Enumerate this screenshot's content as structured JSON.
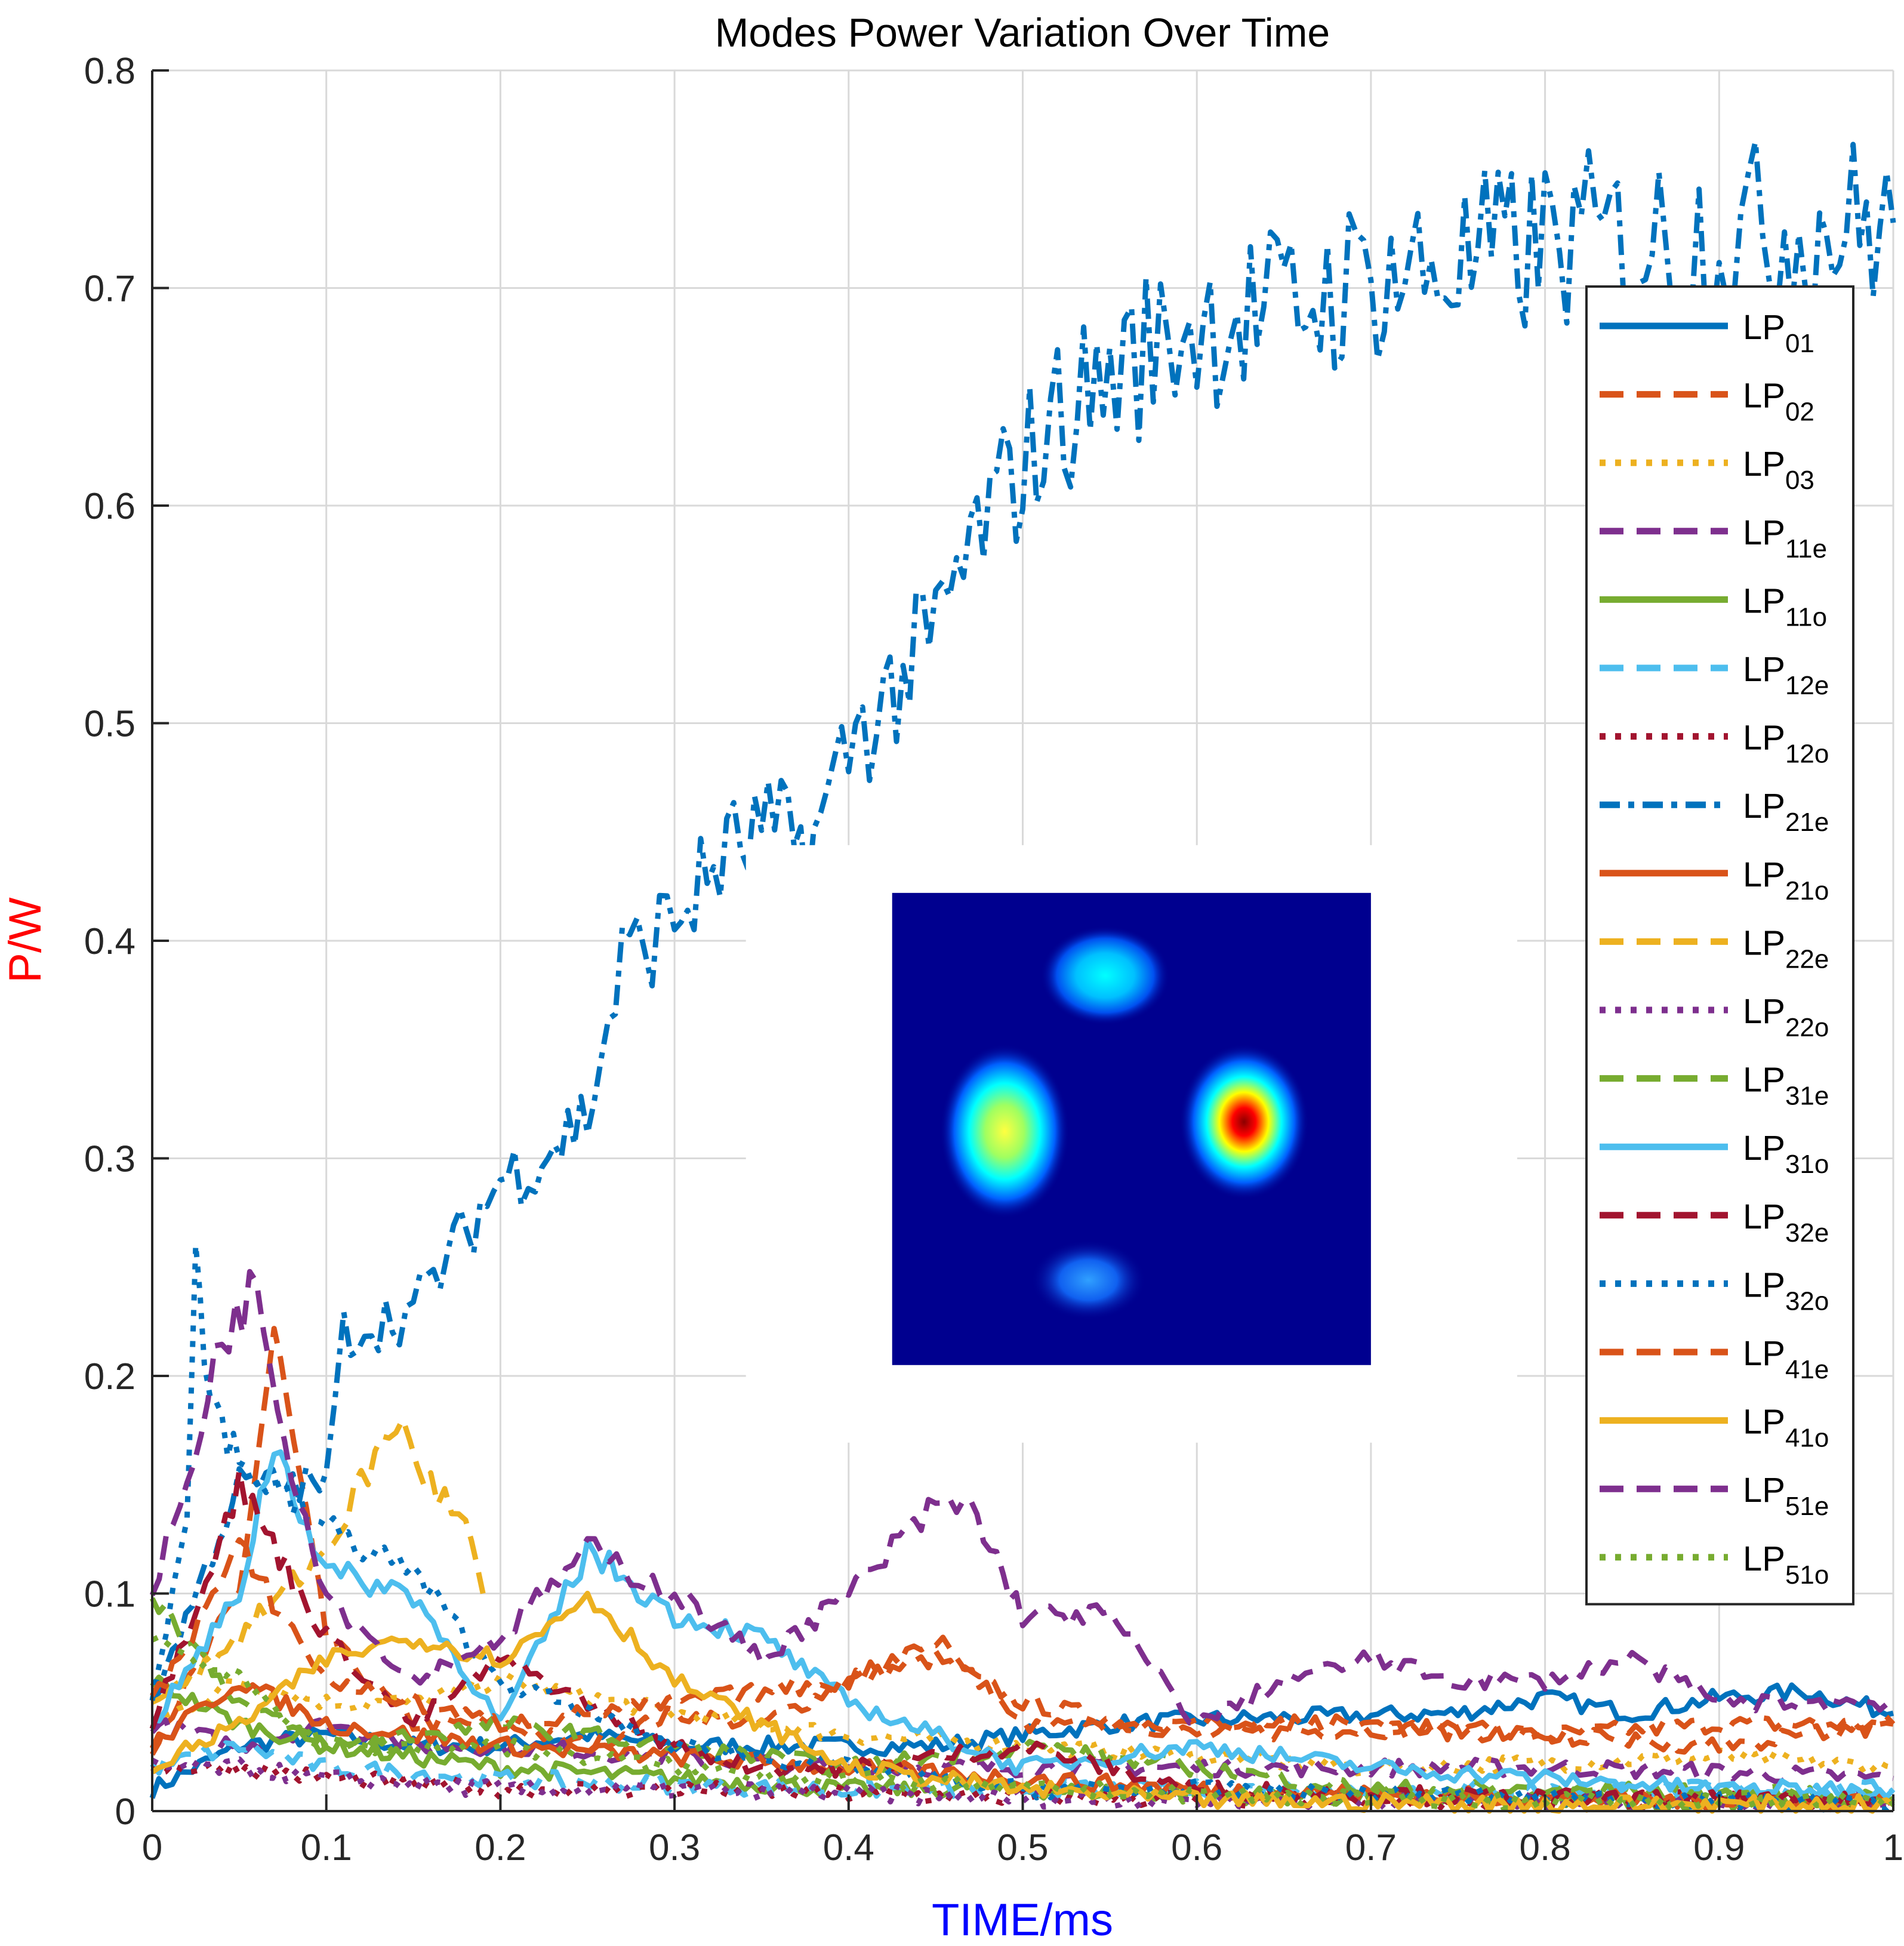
{
  "chart_data": {
    "type": "line",
    "title": "Modes Power Variation Over Time",
    "xlabel": "TIME/ms",
    "ylabel": "P/W",
    "xlabel_color": "#0000ff",
    "ylabel_color": "#ff0000",
    "xlim": [
      0,
      1
    ],
    "ylim": [
      0,
      0.8
    ],
    "xticks": [
      0,
      0.1,
      0.2,
      0.3,
      0.4,
      0.5,
      0.6,
      0.7,
      0.8,
      0.9,
      1
    ],
    "xtick_labels": [
      "0",
      "0.1",
      "0.2",
      "0.3",
      "0.4",
      "0.5",
      "0.6",
      "0.7",
      "0.8",
      "0.9",
      "1"
    ],
    "yticks": [
      0,
      0.1,
      0.2,
      0.3,
      0.4,
      0.5,
      0.6,
      0.7,
      0.8
    ],
    "ytick_labels": [
      "0",
      "0.1",
      "0.2",
      "0.3",
      "0.4",
      "0.5",
      "0.6",
      "0.7",
      "0.8"
    ],
    "grid": true,
    "legend_position": "top-right",
    "inset": {
      "description": "mode field intensity",
      "x_range": [
        0.425,
        0.7
      ],
      "y_range": [
        0.205,
        0.422
      ]
    },
    "series": [
      {
        "name": "LP",
        "sub": "01",
        "color": "#0072bd",
        "style": "solid",
        "x": [
          0,
          0.05,
          0.1,
          0.15,
          0.2,
          0.25,
          0.3,
          0.35,
          0.4,
          0.45,
          0.5,
          0.55,
          0.6,
          0.65,
          0.7,
          0.75,
          0.8,
          0.85,
          0.9,
          0.95,
          1
        ],
        "y": [
          0.01,
          0.03,
          0.035,
          0.03,
          0.03,
          0.035,
          0.03,
          0.03,
          0.03,
          0.03,
          0.035,
          0.04,
          0.042,
          0.043,
          0.044,
          0.045,
          0.052,
          0.045,
          0.052,
          0.055,
          0.045
        ]
      },
      {
        "name": "LP",
        "sub": "02",
        "color": "#d95319",
        "style": "dashed",
        "x": [
          0,
          0.05,
          0.07,
          0.1,
          0.15,
          0.2,
          0.25,
          0.3,
          0.35,
          0.4,
          0.45,
          0.5,
          0.6,
          0.7,
          0.8,
          0.9,
          1
        ],
        "y": [
          0.03,
          0.1,
          0.22,
          0.08,
          0.04,
          0.04,
          0.03,
          0.045,
          0.04,
          0.06,
          0.07,
          0.05,
          0.035,
          0.038,
          0.035,
          0.04,
          0.04
        ]
      },
      {
        "name": "LP",
        "sub": "03",
        "color": "#edb120",
        "style": "dotted",
        "x": [
          0,
          0.05,
          0.1,
          0.15,
          0.2,
          0.3,
          0.4,
          0.5,
          0.6,
          0.7,
          0.8,
          0.9,
          1
        ],
        "y": [
          0.04,
          0.06,
          0.05,
          0.05,
          0.06,
          0.045,
          0.035,
          0.03,
          0.025,
          0.02,
          0.022,
          0.025,
          0.02
        ]
      },
      {
        "name": "LP",
        "sub": "11e",
        "color": "#7e2f8e",
        "style": "dashed",
        "x": [
          0,
          0.05,
          0.1,
          0.15,
          0.2,
          0.3,
          0.4,
          0.5,
          0.6,
          0.7,
          0.8,
          0.9,
          1
        ],
        "y": [
          0.04,
          0.03,
          0.04,
          0.03,
          0.03,
          0.025,
          0.02,
          0.02,
          0.02,
          0.02,
          0.02,
          0.018,
          0.015
        ]
      },
      {
        "name": "LP",
        "sub": "11o",
        "color": "#77ac30",
        "style": "solid",
        "x": [
          0,
          0.05,
          0.1,
          0.2,
          0.3,
          0.4,
          0.5,
          0.6,
          0.7,
          0.8,
          0.9,
          1
        ],
        "y": [
          0.06,
          0.04,
          0.03,
          0.02,
          0.015,
          0.01,
          0.01,
          0.008,
          0.006,
          0.005,
          0.005,
          0.004
        ]
      },
      {
        "name": "LP",
        "sub": "12e",
        "color": "#4dbeee",
        "style": "dashed",
        "x": [
          0,
          0.05,
          0.1,
          0.2,
          0.3,
          0.4,
          0.5,
          0.6,
          0.7,
          0.8,
          0.9,
          1
        ],
        "y": [
          0.02,
          0.03,
          0.02,
          0.015,
          0.012,
          0.01,
          0.01,
          0.01,
          0.01,
          0.01,
          0.01,
          0.01
        ]
      },
      {
        "name": "LP",
        "sub": "12o",
        "color": "#a2142f",
        "style": "dotted",
        "x": [
          0,
          0.05,
          0.1,
          0.2,
          0.3,
          0.4,
          0.5,
          0.6,
          0.7,
          0.8,
          0.9,
          1
        ],
        "y": [
          0.02,
          0.02,
          0.015,
          0.01,
          0.01,
          0.008,
          0.006,
          0.006,
          0.005,
          0.005,
          0.005,
          0.004
        ]
      },
      {
        "name": "LP",
        "sub": "21e",
        "color": "#0072bd",
        "style": "dash-dot",
        "x": [
          0,
          0.05,
          0.1,
          0.11,
          0.15,
          0.2,
          0.22,
          0.25,
          0.27,
          0.3,
          0.33,
          0.35,
          0.38,
          0.4,
          0.42,
          0.45,
          0.47,
          0.5,
          0.52,
          0.55,
          0.6,
          0.65,
          0.7,
          0.75,
          0.8,
          0.85,
          0.9,
          0.95,
          1
        ],
        "y": [
          0.05,
          0.15,
          0.15,
          0.22,
          0.23,
          0.29,
          0.3,
          0.32,
          0.39,
          0.41,
          0.44,
          0.45,
          0.445,
          0.49,
          0.51,
          0.54,
          0.58,
          0.62,
          0.64,
          0.66,
          0.685,
          0.69,
          0.705,
          0.71,
          0.72,
          0.722,
          0.725,
          0.727,
          0.73
        ]
      },
      {
        "name": "LP",
        "sub": "21o",
        "color": "#d95319",
        "style": "solid",
        "x": [
          0,
          0.05,
          0.1,
          0.2,
          0.3,
          0.4,
          0.5,
          0.6,
          0.7,
          0.8,
          0.9,
          1
        ],
        "y": [
          0.03,
          0.06,
          0.04,
          0.03,
          0.025,
          0.02,
          0.015,
          0.01,
          0.008,
          0.006,
          0.005,
          0.004
        ]
      },
      {
        "name": "LP",
        "sub": "22e",
        "color": "#edb120",
        "style": "dashed",
        "x": [
          0,
          0.05,
          0.1,
          0.12,
          0.14,
          0.16,
          0.18,
          0.19
        ],
        "y": [
          0.05,
          0.08,
          0.12,
          0.15,
          0.18,
          0.15,
          0.13,
          0.1
        ]
      },
      {
        "name": "LP",
        "sub": "22o",
        "color": "#7e2f8e",
        "style": "dotted",
        "x": [
          0,
          0.05,
          0.1,
          0.2,
          0.3,
          0.4,
          0.5,
          0.6,
          0.7,
          0.8,
          0.9,
          1
        ],
        "y": [
          0.02,
          0.02,
          0.015,
          0.01,
          0.01,
          0.008,
          0.006,
          0.005,
          0.005,
          0.005,
          0.004,
          0.004
        ]
      },
      {
        "name": "LP",
        "sub": "31e",
        "color": "#77ac30",
        "style": "dashed",
        "x": [
          0,
          0.05,
          0.1,
          0.2,
          0.3,
          0.4,
          0.5,
          0.6,
          0.7,
          0.8,
          0.9,
          1
        ],
        "y": [
          0.1,
          0.05,
          0.03,
          0.04,
          0.03,
          0.02,
          0.03,
          0.02,
          0.01,
          0.01,
          0.008,
          0.006
        ]
      },
      {
        "name": "LP",
        "sub": "31o",
        "color": "#4dbeee",
        "style": "solid",
        "x": [
          0,
          0.05,
          0.07,
          0.1,
          0.15,
          0.2,
          0.25,
          0.3,
          0.35,
          0.4,
          0.5,
          0.6,
          0.7,
          0.8,
          0.9,
          1
        ],
        "y": [
          0.04,
          0.1,
          0.17,
          0.11,
          0.1,
          0.04,
          0.12,
          0.09,
          0.08,
          0.05,
          0.02,
          0.03,
          0.02,
          0.015,
          0.01,
          0.01
        ]
      },
      {
        "name": "LP",
        "sub": "32e",
        "color": "#a2142f",
        "style": "dashed",
        "x": [
          0,
          0.05,
          0.1,
          0.15,
          0.2,
          0.25,
          0.3,
          0.35,
          0.4,
          0.5,
          0.6,
          0.7,
          0.8,
          0.9,
          1
        ],
        "y": [
          0.04,
          0.15,
          0.08,
          0.04,
          0.07,
          0.05,
          0.03,
          0.02,
          0.02,
          0.03,
          0.01,
          0.008,
          0.006,
          0.005,
          0.004
        ]
      },
      {
        "name": "LP",
        "sub": "32o",
        "color": "#0072bd",
        "style": "dotted",
        "x": [
          0,
          0.02,
          0.025,
          0.03,
          0.04,
          0.05,
          0.1,
          0.15,
          0.2,
          0.3,
          0.4,
          0.5,
          0.6,
          0.7,
          0.8,
          0.9,
          1
        ],
        "y": [
          0.05,
          0.14,
          0.27,
          0.2,
          0.18,
          0.16,
          0.13,
          0.11,
          0.06,
          0.03,
          0.02,
          0.01,
          0.01,
          0.008,
          0.006,
          0.005,
          0.004
        ]
      },
      {
        "name": "LP",
        "sub": "41e",
        "color": "#d95319",
        "style": "dashed",
        "x": [
          0,
          0.05,
          0.1,
          0.2,
          0.3,
          0.4,
          0.45,
          0.5,
          0.6,
          0.7,
          0.8,
          0.9,
          1
        ],
        "y": [
          0.05,
          0.12,
          0.06,
          0.04,
          0.05,
          0.06,
          0.08,
          0.04,
          0.04,
          0.04,
          0.035,
          0.03,
          0.04
        ]
      },
      {
        "name": "LP",
        "sub": "41o",
        "color": "#edb120",
        "style": "solid",
        "x": [
          0,
          0.05,
          0.1,
          0.15,
          0.2,
          0.22,
          0.25,
          0.3,
          0.35,
          0.4,
          0.5,
          0.6,
          0.7,
          0.8,
          0.9,
          1
        ],
        "y": [
          0.02,
          0.04,
          0.07,
          0.08,
          0.07,
          0.08,
          0.1,
          0.06,
          0.04,
          0.02,
          0.01,
          0.005,
          0.004,
          0.003,
          0.003,
          0.003
        ]
      },
      {
        "name": "LP",
        "sub": "51e",
        "color": "#7e2f8e",
        "style": "dashed",
        "x": [
          0,
          0.02,
          0.04,
          0.06,
          0.08,
          0.1,
          0.15,
          0.2,
          0.25,
          0.3,
          0.35,
          0.4,
          0.45,
          0.47,
          0.5,
          0.55,
          0.6,
          0.65,
          0.7,
          0.75,
          0.8,
          0.85,
          0.9,
          0.95,
          1
        ],
        "y": [
          0.1,
          0.15,
          0.22,
          0.24,
          0.16,
          0.1,
          0.06,
          0.08,
          0.12,
          0.1,
          0.07,
          0.1,
          0.14,
          0.14,
          0.09,
          0.09,
          0.04,
          0.06,
          0.07,
          0.06,
          0.06,
          0.07,
          0.05,
          0.05,
          0.05
        ]
      },
      {
        "name": "LP",
        "sub": "51o",
        "color": "#77ac30",
        "style": "dotted",
        "x": [
          0,
          0.05,
          0.1,
          0.2,
          0.3,
          0.4,
          0.5,
          0.6,
          0.7,
          0.8,
          0.9,
          1
        ],
        "y": [
          0.08,
          0.06,
          0.03,
          0.03,
          0.02,
          0.015,
          0.01,
          0.008,
          0.006,
          0.005,
          0.005,
          0.004
        ]
      }
    ]
  }
}
